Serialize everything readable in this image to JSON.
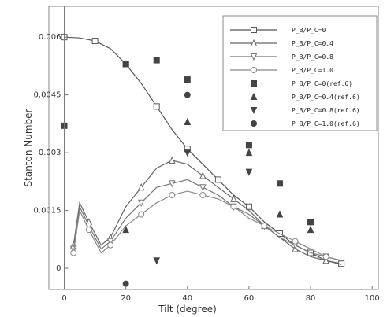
{
  "chart_data": {
    "type": "line",
    "title": "",
    "xlabel": "Tilt (degree)",
    "ylabel": "Stanton Number",
    "xlim": [
      -5,
      102
    ],
    "ylim": [
      -0.00055,
      0.0068
    ],
    "x_ticks": [
      {
        "value": 0,
        "label": "0"
      },
      {
        "value": 20,
        "label": "20"
      },
      {
        "value": 40,
        "label": "40"
      },
      {
        "value": 60,
        "label": "60"
      },
      {
        "value": 80,
        "label": "80"
      },
      {
        "value": 100,
        "label": "100"
      }
    ],
    "y_ticks": [
      {
        "value": 0,
        "label": "0"
      },
      {
        "value": 0.0015,
        "label": "0.0015"
      },
      {
        "value": 0.003,
        "label": "0.003"
      },
      {
        "value": 0.0045,
        "label": "0.0045"
      },
      {
        "value": 0.006,
        "label": "0.006"
      }
    ],
    "series": [
      {
        "name": "P_B/P_C=0",
        "kind": "line",
        "color": "#555555",
        "marker": "square",
        "x": [
          0,
          5,
          10,
          15,
          20,
          25,
          30,
          35,
          40,
          45,
          50,
          55,
          60,
          65,
          70,
          75,
          80,
          85,
          90
        ],
        "y": [
          0.006,
          0.00598,
          0.0059,
          0.0057,
          0.0053,
          0.0048,
          0.0042,
          0.0036,
          0.0031,
          0.0027,
          0.0023,
          0.0019,
          0.0016,
          0.0012,
          0.0009,
          0.0006,
          0.0004,
          0.0002,
          0.00012
        ]
      },
      {
        "name": "P_B/P_C=0.4",
        "kind": "line",
        "color": "#666666",
        "marker": "triangle-up",
        "x": [
          3,
          5,
          8,
          12,
          15,
          20,
          25,
          30,
          35,
          40,
          45,
          50,
          55,
          60,
          65,
          70,
          75,
          80,
          85,
          90
        ],
        "y": [
          0.0006,
          0.0017,
          0.0012,
          0.0006,
          0.0008,
          0.0016,
          0.0021,
          0.0026,
          0.0028,
          0.0027,
          0.0024,
          0.0021,
          0.0018,
          0.0015,
          0.0011,
          0.0008,
          0.0005,
          0.0003,
          0.0002,
          0.0001
        ]
      },
      {
        "name": "P_B/P_C=0.8",
        "kind": "line",
        "color": "#777777",
        "marker": "triangle-down",
        "x": [
          3,
          5,
          8,
          12,
          15,
          20,
          25,
          30,
          35,
          40,
          45,
          50,
          55,
          60,
          65,
          70,
          75,
          80,
          85,
          90
        ],
        "y": [
          0.0005,
          0.0016,
          0.0011,
          0.0005,
          0.0007,
          0.0013,
          0.0017,
          0.0021,
          0.0022,
          0.0023,
          0.0021,
          0.0019,
          0.0016,
          0.0014,
          0.0011,
          0.0008,
          0.0006,
          0.0004,
          0.0003,
          0.0002
        ]
      },
      {
        "name": "P_B/P_C=1.0",
        "kind": "line",
        "color": "#888888",
        "marker": "circle",
        "x": [
          3,
          5,
          8,
          12,
          15,
          20,
          25,
          30,
          35,
          40,
          45,
          50,
          55,
          60,
          65,
          70,
          75,
          80,
          85,
          90
        ],
        "y": [
          0.0004,
          0.0015,
          0.001,
          0.0004,
          0.0006,
          0.0011,
          0.0014,
          0.0017,
          0.0019,
          0.002,
          0.0019,
          0.0018,
          0.0016,
          0.0013,
          0.0011,
          0.0009,
          0.0007,
          0.0005,
          0.0003,
          0.0002
        ]
      },
      {
        "name": "P_B/P_C=0(ref.6)",
        "kind": "points",
        "color": "#444444",
        "marker": "square",
        "x": [
          0,
          20,
          30,
          40,
          60,
          70,
          80
        ],
        "y": [
          0.0037,
          0.0053,
          0.0054,
          0.0049,
          0.0032,
          0.0022,
          0.0012
        ]
      },
      {
        "name": "P_B/P_C=0.4(ref.6)",
        "kind": "points",
        "color": "#444444",
        "marker": "triangle-up",
        "x": [
          20,
          40,
          60,
          70,
          80
        ],
        "y": [
          0.001,
          0.0038,
          0.003,
          0.0014,
          0.001
        ]
      },
      {
        "name": "P_B/P_C=0.8(ref.6)",
        "kind": "points",
        "color": "#444444",
        "marker": "triangle-down",
        "x": [
          30,
          40,
          60,
          80
        ],
        "y": [
          0.0002,
          0.003,
          0.0025,
          0.0012
        ]
      },
      {
        "name": "P_B/P_C=1.0(ref.6)",
        "kind": "points",
        "color": "#444444",
        "marker": "circle",
        "x": [
          20,
          40,
          60,
          80
        ],
        "y": [
          -0.0004,
          0.0045,
          0.0032,
          0.0012
        ]
      }
    ]
  }
}
